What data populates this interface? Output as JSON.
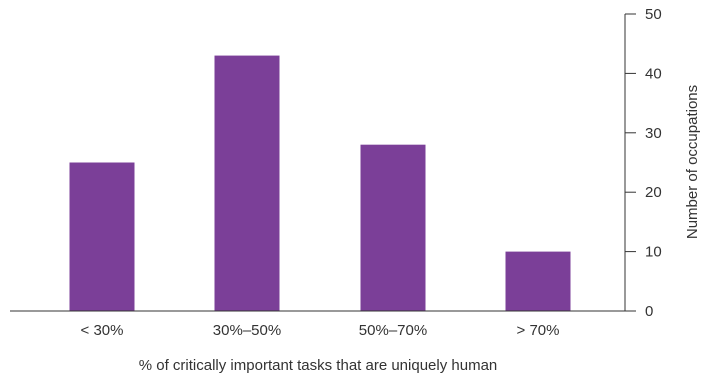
{
  "chart_data": {
    "type": "bar",
    "categories": [
      "< 30%",
      "30%–50%",
      "50%–70%",
      "> 70%"
    ],
    "values": [
      25,
      43,
      28,
      10
    ],
    "xlabel": "% of critically important tasks that are uniquely human",
    "ylabel": "Number of occupations",
    "ylim": [
      0,
      50
    ],
    "yticks": [
      0,
      10,
      20,
      30,
      40,
      50
    ],
    "y_axis_side": "right",
    "bar_color": "#7B3F98",
    "axis_color": "#333333",
    "grid": false
  }
}
